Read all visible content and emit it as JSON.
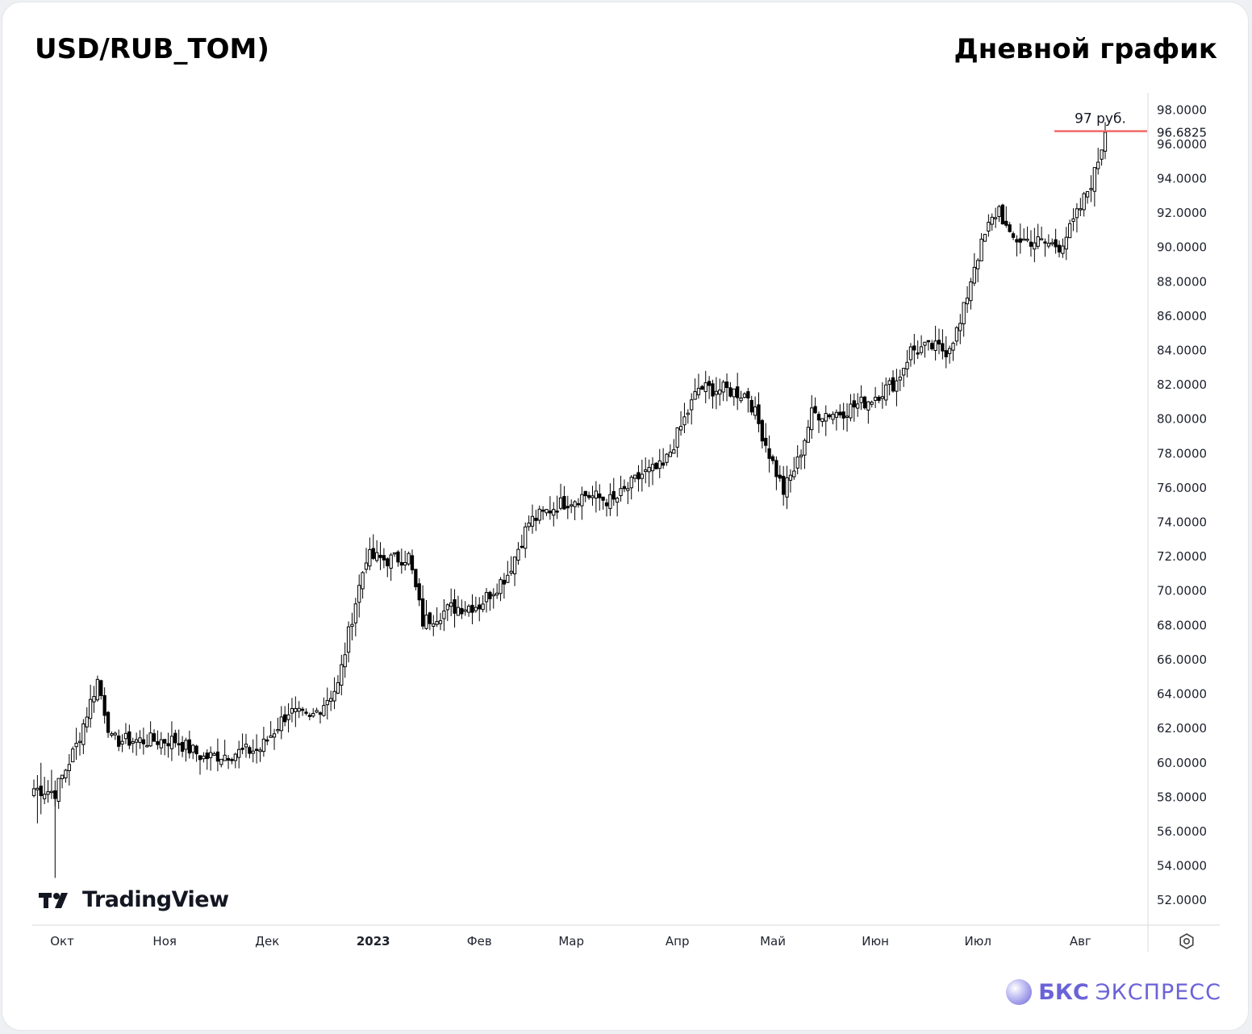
{
  "header": {
    "title_left": "USD/RUB_TOM)",
    "title_right": "Дневной график"
  },
  "branding": {
    "tradingview": "TradingView",
    "bcs_bold": "БКС",
    "bcs_light": "ЭКСПРЕСС"
  },
  "colors": {
    "candle_up_fill": "#ffffff",
    "candle_down_fill": "#000000",
    "candle_outline": "#000000",
    "price_line": "#f06a6a",
    "brand": "#6a63d8"
  },
  "chart_data": {
    "type": "candlestick",
    "title": "USD/RUB_TOM)",
    "subtitle": "Дневной график",
    "ylim": [
      50.6,
      99.0
    ],
    "y_axis_position": "right",
    "y_ticks": [
      "98.0000",
      "96.0000",
      "94.0000",
      "92.0000",
      "90.0000",
      "88.0000",
      "86.0000",
      "84.0000",
      "82.0000",
      "80.0000",
      "78.0000",
      "76.0000",
      "74.0000",
      "72.0000",
      "70.0000",
      "68.0000",
      "66.0000",
      "64.0000",
      "62.0000",
      "60.0000",
      "58.0000",
      "56.0000",
      "54.0000",
      "52.0000"
    ],
    "x_ticks": [
      {
        "label": "Окт",
        "index": 8
      },
      {
        "label": "Ноя",
        "index": 37
      },
      {
        "label": "Дек",
        "index": 66
      },
      {
        "label": "2023",
        "index": 96,
        "bold": true
      },
      {
        "label": "Фев",
        "index": 126
      },
      {
        "label": "Мар",
        "index": 152
      },
      {
        "label": "Апр",
        "index": 182
      },
      {
        "label": "Май",
        "index": 209
      },
      {
        "label": "Июн",
        "index": 238
      },
      {
        "label": "Июл",
        "index": 267
      },
      {
        "label": "Авг",
        "index": 296
      }
    ],
    "last_price": {
      "value": 96.6825,
      "label": "96.6825"
    },
    "annotation": {
      "text": "97 руб.",
      "value": 97.0
    },
    "key_points": [
      {
        "i": 0,
        "close": 58.5
      },
      {
        "i": 6,
        "close": 58.3
      },
      {
        "i": 12,
        "close": 61.0
      },
      {
        "i": 18,
        "close": 64.8
      },
      {
        "i": 22,
        "close": 61.3
      },
      {
        "i": 40,
        "close": 61.3
      },
      {
        "i": 48,
        "close": 60.3
      },
      {
        "i": 64,
        "close": 60.8
      },
      {
        "i": 72,
        "close": 63.0
      },
      {
        "i": 78,
        "close": 62.5
      },
      {
        "i": 86,
        "close": 64.5
      },
      {
        "i": 90,
        "close": 68.5
      },
      {
        "i": 94,
        "close": 72.0
      },
      {
        "i": 100,
        "close": 71.8
      },
      {
        "i": 106,
        "close": 72.0
      },
      {
        "i": 110,
        "close": 68.2
      },
      {
        "i": 118,
        "close": 69.0
      },
      {
        "i": 126,
        "close": 69.2
      },
      {
        "i": 134,
        "close": 71.0
      },
      {
        "i": 140,
        "close": 74.0
      },
      {
        "i": 148,
        "close": 75.0
      },
      {
        "i": 156,
        "close": 75.6
      },
      {
        "i": 164,
        "close": 75.2
      },
      {
        "i": 172,
        "close": 76.8
      },
      {
        "i": 178,
        "close": 77.2
      },
      {
        "i": 184,
        "close": 80.0
      },
      {
        "i": 188,
        "close": 81.8
      },
      {
        "i": 196,
        "close": 81.7
      },
      {
        "i": 202,
        "close": 81.4
      },
      {
        "i": 204,
        "close": 80.3
      },
      {
        "i": 208,
        "close": 78.0
      },
      {
        "i": 212,
        "close": 75.8
      },
      {
        "i": 216,
        "close": 77.5
      },
      {
        "i": 220,
        "close": 80.3
      },
      {
        "i": 228,
        "close": 80.4
      },
      {
        "i": 236,
        "close": 81.1
      },
      {
        "i": 244,
        "close": 82.2
      },
      {
        "i": 248,
        "close": 84.0
      },
      {
        "i": 254,
        "close": 84.2
      },
      {
        "i": 258,
        "close": 84.0
      },
      {
        "i": 262,
        "close": 85.5
      },
      {
        "i": 266,
        "close": 89.0
      },
      {
        "i": 270,
        "close": 91.2
      },
      {
        "i": 273,
        "close": 92.3
      },
      {
        "i": 276,
        "close": 90.5
      },
      {
        "i": 282,
        "close": 90.4
      },
      {
        "i": 290,
        "close": 90.1
      },
      {
        "i": 293,
        "close": 91.0
      },
      {
        "i": 296,
        "close": 92.3
      },
      {
        "i": 300,
        "close": 94.3
      },
      {
        "i": 303,
        "close": 96.7
      }
    ]
  }
}
